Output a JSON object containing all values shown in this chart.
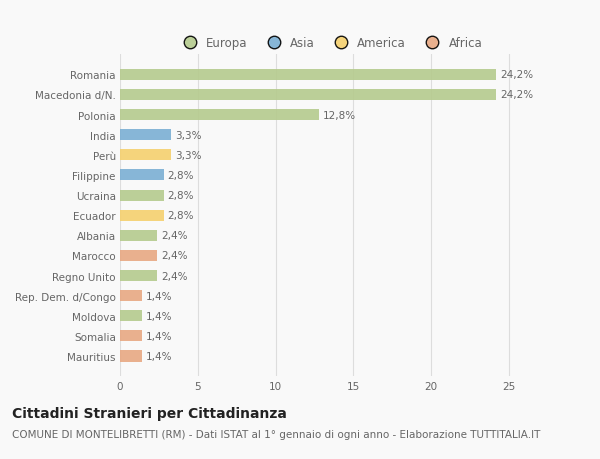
{
  "countries": [
    "Romania",
    "Macedonia d/N.",
    "Polonia",
    "India",
    "Perù",
    "Filippine",
    "Ucraina",
    "Ecuador",
    "Albania",
    "Marocco",
    "Regno Unito",
    "Rep. Dem. d/Congo",
    "Moldova",
    "Somalia",
    "Mauritius"
  ],
  "values": [
    24.2,
    24.2,
    12.8,
    3.3,
    3.3,
    2.8,
    2.8,
    2.8,
    2.4,
    2.4,
    2.4,
    1.4,
    1.4,
    1.4,
    1.4
  ],
  "labels": [
    "24,2%",
    "24,2%",
    "12,8%",
    "3,3%",
    "3,3%",
    "2,8%",
    "2,8%",
    "2,8%",
    "2,4%",
    "2,4%",
    "2,4%",
    "1,4%",
    "1,4%",
    "1,4%",
    "1,4%"
  ],
  "continents": [
    "Europa",
    "Europa",
    "Europa",
    "Asia",
    "America",
    "Asia",
    "Europa",
    "America",
    "Europa",
    "Africa",
    "Europa",
    "Africa",
    "Europa",
    "Africa",
    "Africa"
  ],
  "colors": {
    "Europa": "#b5cb8e",
    "Asia": "#7bafd4",
    "America": "#f5d06e",
    "Africa": "#e8a882"
  },
  "xlim": [
    0,
    27
  ],
  "title": "Cittadini Stranieri per Cittadinanza",
  "subtitle": "COMUNE DI MONTELIBRETTI (RM) - Dati ISTAT al 1° gennaio di ogni anno - Elaborazione TUTTITALIA.IT",
  "background_color": "#f9f9f9",
  "grid_color": "#dddddd",
  "text_color": "#666666",
  "title_fontsize": 10,
  "subtitle_fontsize": 7.5,
  "label_fontsize": 7.5,
  "tick_fontsize": 7.5,
  "legend_fontsize": 8.5
}
